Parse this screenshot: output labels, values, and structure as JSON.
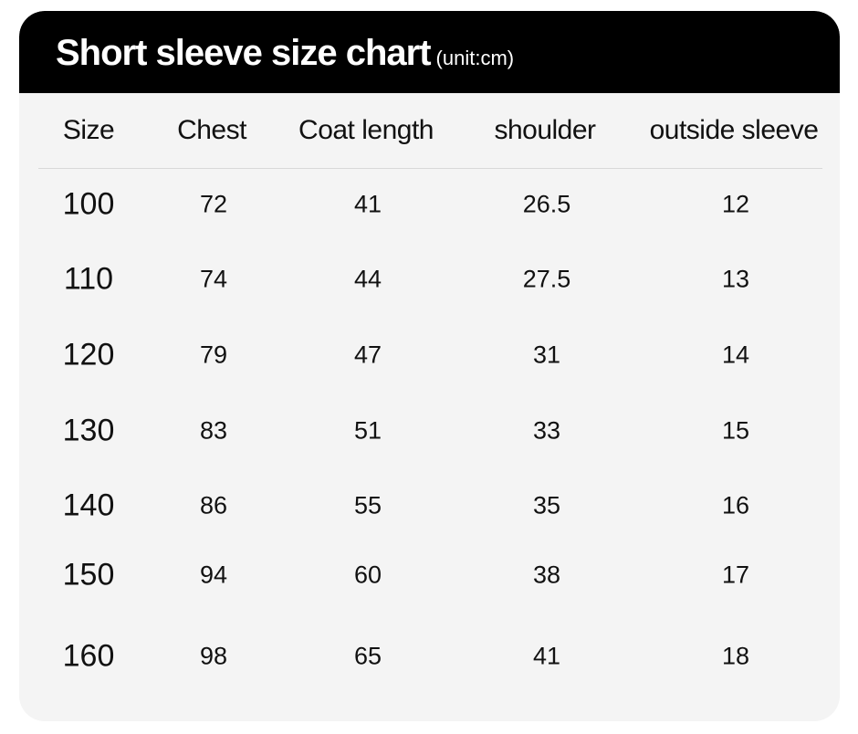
{
  "title": "Short sleeve size chart",
  "unit": "(unit:cm)",
  "columns": [
    "Size",
    "Chest",
    "Coat length",
    "shoulder",
    "outside sleeve"
  ],
  "rows": [
    [
      "100",
      "72",
      "41",
      "26.5",
      "12"
    ],
    [
      "110",
      "74",
      "44",
      "27.5",
      "13"
    ],
    [
      "120",
      "79",
      "47",
      "31",
      "14"
    ],
    [
      "130",
      "83",
      "51",
      "33",
      "15"
    ],
    [
      "140",
      "86",
      "55",
      "35",
      "16"
    ],
    [
      "150",
      "94",
      "60",
      "38",
      "17"
    ],
    [
      "160",
      "98",
      "65",
      "41",
      "18"
    ]
  ],
  "colors": {
    "header_bg": "#000000",
    "card_bg": "#f4f4f4",
    "text": "#111111"
  }
}
